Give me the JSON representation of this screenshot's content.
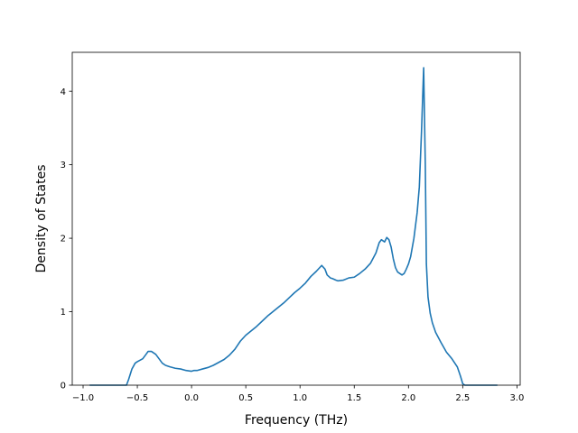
{
  "chart_data": {
    "type": "line",
    "title": "",
    "xlabel": "Frequency (THz)",
    "ylabel": "Density of States",
    "xlim": [
      -1.1,
      3.03
    ],
    "ylim": [
      0,
      4.53
    ],
    "x_ticks": [
      -1.0,
      -0.5,
      0.0,
      0.5,
      1.0,
      1.5,
      2.0,
      2.5,
      3.0
    ],
    "x_tick_labels": [
      "−1.0",
      "−0.5",
      "0.0",
      "0.5",
      "1.0",
      "1.5",
      "2.0",
      "2.5",
      "3.0"
    ],
    "y_ticks": [
      0,
      1,
      2,
      3,
      4
    ],
    "y_tick_labels": [
      "0",
      "1",
      "2",
      "3",
      "4"
    ],
    "grid": false,
    "legend": "none",
    "series": [
      {
        "color": "#1f77b4",
        "x": [
          -0.94,
          -0.6,
          -0.58,
          -0.55,
          -0.52,
          -0.5,
          -0.45,
          -0.42,
          -0.4,
          -0.37,
          -0.33,
          -0.3,
          -0.27,
          -0.24,
          -0.2,
          -0.15,
          -0.1,
          -0.05,
          0.0,
          0.02,
          0.05,
          0.1,
          0.15,
          0.2,
          0.25,
          0.3,
          0.35,
          0.4,
          0.45,
          0.5,
          0.55,
          0.6,
          0.65,
          0.7,
          0.75,
          0.8,
          0.85,
          0.9,
          0.95,
          1.0,
          1.05,
          1.1,
          1.15,
          1.2,
          1.23,
          1.25,
          1.28,
          1.3,
          1.33,
          1.35,
          1.4,
          1.45,
          1.5,
          1.55,
          1.6,
          1.65,
          1.7,
          1.73,
          1.75,
          1.78,
          1.8,
          1.82,
          1.84,
          1.86,
          1.88,
          1.9,
          1.92,
          1.94,
          1.96,
          1.98,
          2.0,
          2.02,
          2.05,
          2.08,
          2.1,
          2.12,
          2.14,
          2.155,
          2.165,
          2.18,
          2.2,
          2.22,
          2.25,
          2.3,
          2.35,
          2.4,
          2.45,
          2.48,
          2.5,
          2.52,
          2.6,
          2.82
        ],
        "y": [
          0.0,
          0.0,
          0.08,
          0.22,
          0.3,
          0.32,
          0.36,
          0.42,
          0.46,
          0.46,
          0.42,
          0.36,
          0.3,
          0.27,
          0.25,
          0.23,
          0.22,
          0.2,
          0.19,
          0.2,
          0.2,
          0.22,
          0.24,
          0.27,
          0.31,
          0.35,
          0.41,
          0.49,
          0.6,
          0.68,
          0.74,
          0.8,
          0.87,
          0.94,
          1.0,
          1.06,
          1.12,
          1.19,
          1.26,
          1.32,
          1.39,
          1.48,
          1.55,
          1.63,
          1.58,
          1.5,
          1.46,
          1.45,
          1.43,
          1.42,
          1.43,
          1.46,
          1.47,
          1.52,
          1.58,
          1.66,
          1.8,
          1.94,
          1.98,
          1.95,
          2.01,
          1.98,
          1.88,
          1.72,
          1.6,
          1.54,
          1.52,
          1.5,
          1.52,
          1.58,
          1.65,
          1.75,
          2.0,
          2.35,
          2.7,
          3.45,
          4.32,
          3.0,
          1.65,
          1.2,
          0.98,
          0.85,
          0.72,
          0.58,
          0.45,
          0.36,
          0.25,
          0.12,
          0.02,
          0.0,
          0.0,
          0.0
        ]
      }
    ]
  }
}
